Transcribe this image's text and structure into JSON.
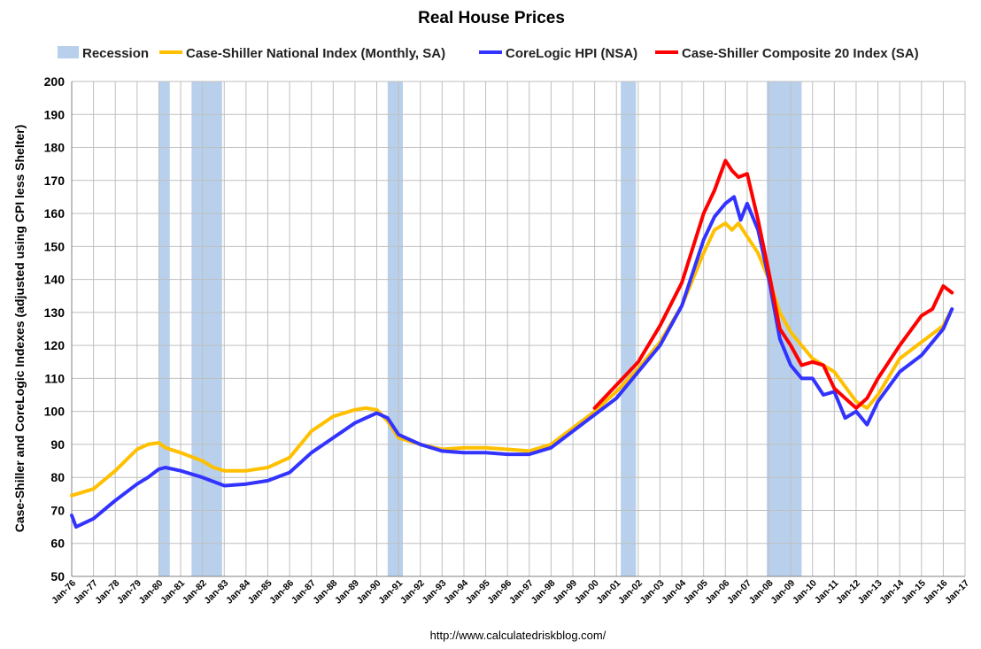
{
  "chart_data": {
    "type": "line",
    "title": "Real House Prices",
    "ylabel": "Case-Shiller and CoreLogic Indexes (adjusted using CPI less Shelter)",
    "xlabel": "",
    "source": "http://www.calculatedriskblog.com/",
    "ylim": [
      50,
      200
    ],
    "yticks": [
      50,
      60,
      70,
      80,
      90,
      100,
      110,
      120,
      130,
      140,
      150,
      160,
      170,
      180,
      190,
      200
    ],
    "xlim": [
      1976,
      2017
    ],
    "xtick_labels": [
      "Jan-76",
      "Jan-77",
      "Jan-78",
      "Jan-79",
      "Jan-80",
      "Jan-81",
      "Jan-82",
      "Jan-83",
      "Jan-84",
      "Jan-85",
      "Jan-86",
      "Jan-87",
      "Jan-88",
      "Jan-89",
      "Jan-90",
      "Jan-91",
      "Jan-92",
      "Jan-93",
      "Jan-94",
      "Jan-95",
      "Jan-96",
      "Jan-97",
      "Jan-98",
      "Jan-99",
      "Jan-00",
      "Jan-01",
      "Jan-02",
      "Jan-03",
      "Jan-04",
      "Jan-05",
      "Jan-06",
      "Jan-07",
      "Jan-08",
      "Jan-09",
      "Jan-10",
      "Jan-11",
      "Jan-12",
      "Jan-13",
      "Jan-14",
      "Jan-15",
      "Jan-16",
      "Jan-17"
    ],
    "grid": true,
    "legend_position": "top",
    "recessions": {
      "name": "Recession",
      "color": "#b8d0ec",
      "periods": [
        [
          1980.0,
          1980.5
        ],
        [
          1981.5,
          1982.9
        ],
        [
          1990.5,
          1991.2
        ],
        [
          2001.2,
          2001.9
        ],
        [
          2007.9,
          2009.5
        ]
      ]
    },
    "series": [
      {
        "name": "Case-Shiller National Index (Monthly, SA)",
        "color": "#ffc000",
        "x": [
          1976,
          1977,
          1978,
          1979,
          1979.5,
          1980.0,
          1980.3,
          1981,
          1982,
          1982.5,
          1983.0,
          1984,
          1985,
          1986,
          1987,
          1988,
          1989,
          1989.5,
          1990,
          1990.5,
          1991,
          1992,
          1993,
          1994,
          1995,
          1996,
          1997,
          1998,
          1999,
          2000,
          2001,
          2002,
          2003,
          2004,
          2005,
          2005.5,
          2006,
          2006.3,
          2006.6,
          2007,
          2007.5,
          2008,
          2008.5,
          2009,
          2009.5,
          2010,
          2011,
          2012,
          2012.5,
          2013,
          2014,
          2015,
          2016,
          2016.4
        ],
        "values": [
          74.5,
          76.5,
          82,
          88.5,
          90,
          90.5,
          89,
          87.5,
          85,
          83,
          82,
          82,
          83,
          86,
          94,
          98.5,
          100.5,
          101,
          100.5,
          97,
          92,
          90,
          88.5,
          89,
          89,
          88.5,
          88,
          90,
          95,
          100,
          106,
          113,
          121,
          132,
          148,
          155,
          157,
          155,
          157,
          153,
          148,
          140,
          130,
          124,
          120,
          116,
          112,
          103,
          101,
          105,
          116,
          121,
          126,
          131
        ]
      },
      {
        "name": "CoreLogic HPI (NSA)",
        "color": "#3333ff",
        "x": [
          1976,
          1976.2,
          1977,
          1978,
          1979,
          1979.5,
          1980,
          1980.3,
          1981,
          1982,
          1983,
          1984,
          1985,
          1986,
          1987,
          1988,
          1989,
          1989.5,
          1990,
          1990.5,
          1991,
          1992,
          1993,
          1994,
          1995,
          1996,
          1997,
          1998,
          1999,
          2000,
          2001,
          2002,
          2003,
          2004,
          2005,
          2005.5,
          2006,
          2006.4,
          2006.7,
          2007,
          2007.5,
          2008,
          2008.5,
          2009,
          2009.5,
          2010,
          2010.5,
          2011,
          2011.5,
          2012,
          2012.5,
          2013,
          2014,
          2015,
          2016,
          2016.4
        ],
        "values": [
          68.5,
          65,
          67.5,
          73,
          78,
          80,
          82.5,
          83,
          82,
          80,
          77.5,
          78,
          79,
          81.5,
          87.5,
          92,
          96.5,
          98,
          99.5,
          98,
          93,
          90,
          88,
          87.5,
          87.5,
          87,
          87,
          89,
          94,
          99,
          104,
          112,
          120,
          132,
          152,
          159,
          163,
          165,
          158,
          163,
          155,
          140,
          122,
          114,
          110,
          110,
          105,
          106,
          98,
          100,
          96,
          103,
          112,
          117,
          125,
          131
        ]
      },
      {
        "name": "Case-Shiller Composite 20 Index (SA)",
        "color": "#ff0000",
        "x": [
          2000,
          2001,
          2002,
          2003,
          2004,
          2005,
          2005.5,
          2006,
          2006.3,
          2006.6,
          2007,
          2007.5,
          2008,
          2008.5,
          2009,
          2009.5,
          2010,
          2010.5,
          2011,
          2011.5,
          2012,
          2012.5,
          2013,
          2014,
          2015,
          2015.5,
          2016,
          2016.4
        ],
        "values": [
          101,
          108,
          115,
          126,
          139,
          160,
          167,
          176,
          173,
          171,
          172,
          158,
          142,
          125,
          120,
          114,
          115,
          114,
          107,
          104,
          101,
          104,
          110,
          120,
          129,
          131,
          138,
          136
        ]
      }
    ]
  }
}
